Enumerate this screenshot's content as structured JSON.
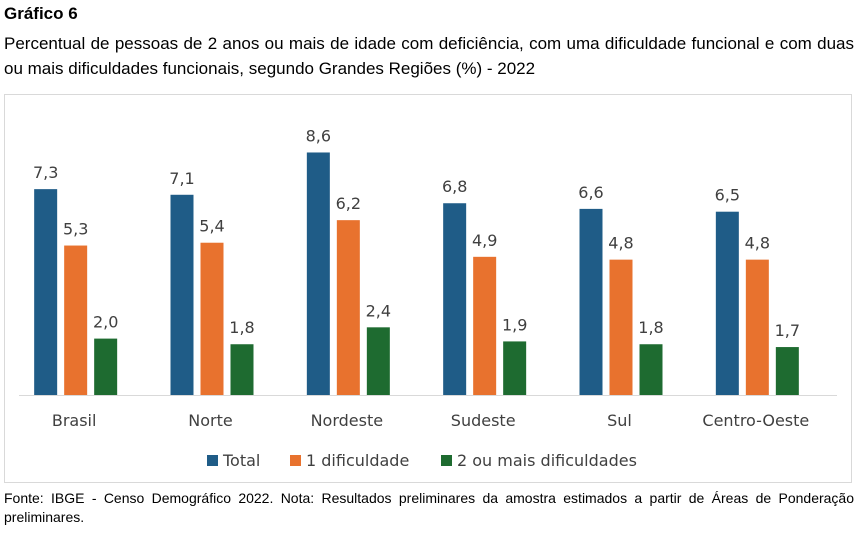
{
  "figure_label": "Gráfico 6",
  "title": "Percentual de pessoas de 2 anos ou mais de idade com deficiência, com uma dificuldade funcional e com duas ou mais dificuldades funcionais, segundo Grandes Regiões (%) - 2022",
  "source": "Fonte: IBGE - Censo Demográfico 2022. Nota: Resultados preliminares da amostra estimados a partir de Áreas de Ponderação preliminares.",
  "colors": {
    "Total": "#1f5c87",
    "1 dificuldade": "#e8722e",
    "2 ou mais dificuldades": "#1e6b30"
  },
  "chart_data": {
    "type": "bar",
    "categories": [
      "Brasil",
      "Norte",
      "Nordeste",
      "Sudeste",
      "Sul",
      "Centro-Oeste"
    ],
    "series": [
      {
        "name": "Total",
        "values": [
          7.3,
          7.1,
          8.6,
          6.8,
          6.6,
          6.5
        ],
        "labels": [
          "7,3",
          "7,1",
          "8,6",
          "6,8",
          "6,6",
          "6,5"
        ]
      },
      {
        "name": "1 dificuldade",
        "values": [
          5.3,
          5.4,
          6.2,
          4.9,
          4.8,
          4.8
        ],
        "labels": [
          "5,3",
          "5,4",
          "6,2",
          "4,9",
          "4,8",
          "4,8"
        ]
      },
      {
        "name": "2 ou mais dificuldades",
        "values": [
          2.0,
          1.8,
          2.4,
          1.9,
          1.8,
          1.7
        ],
        "labels": [
          "2,0",
          "1,8",
          "2,4",
          "1,9",
          "1,8",
          "1,7"
        ]
      }
    ],
    "ylim": [
      0,
      10
    ],
    "grid": false,
    "legend": "bottom"
  }
}
